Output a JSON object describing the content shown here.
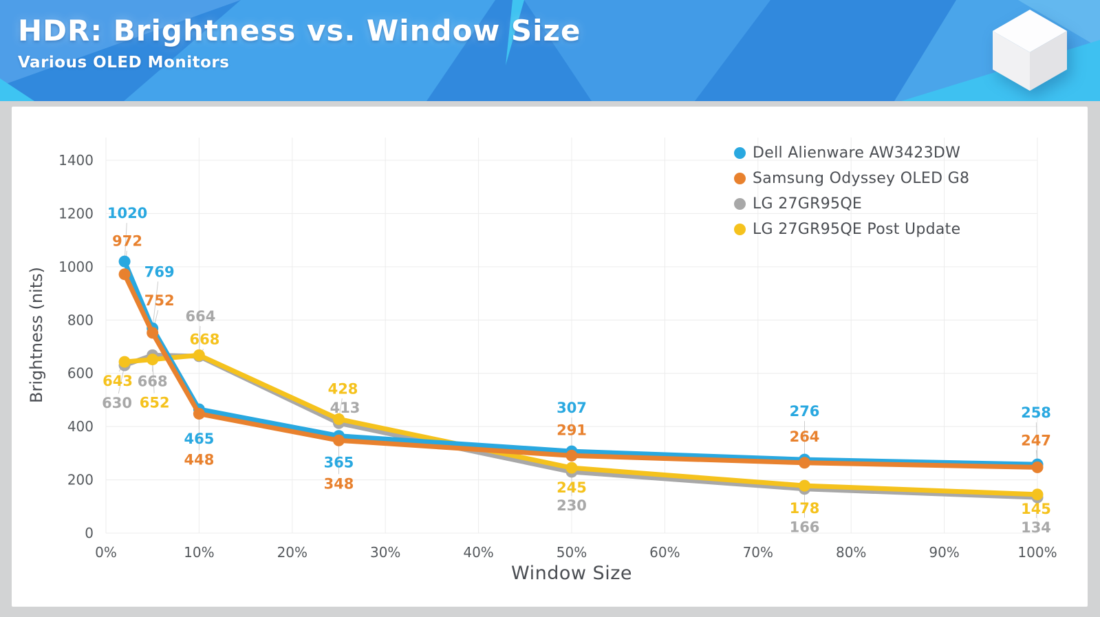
{
  "header": {
    "title": "HDR: Brightness vs. Window Size",
    "subtitle": "Various OLED Monitors",
    "logo_icon": "cube-icon",
    "background_colors": [
      "#3189DD",
      "#4E9EE8",
      "#44A3EB",
      "#429BE7",
      "#4AA5EA",
      "#63B8EF",
      "#3EC1F1"
    ]
  },
  "page": {
    "background_color": "#d2d3d4",
    "card_color": "#ffffff"
  },
  "chart_data": {
    "type": "line",
    "title": "HDR: Brightness vs. Window Size",
    "subtitle": "Various OLED Monitors",
    "xlabel": "Window Size",
    "ylabel": "Brightness (nits)",
    "x_unit": "%",
    "x": [
      2,
      5,
      10,
      25,
      50,
      75,
      100
    ],
    "x_ticks": [
      0,
      10,
      20,
      30,
      40,
      50,
      60,
      70,
      80,
      90,
      100
    ],
    "x_tick_labels": [
      "0%",
      "10%",
      "20%",
      "30%",
      "40%",
      "50%",
      "60%",
      "70%",
      "80%",
      "90%",
      "100%"
    ],
    "y_ticks": [
      0,
      200,
      400,
      600,
      800,
      1000,
      1200,
      1400
    ],
    "xlim": [
      0,
      100
    ],
    "ylim": [
      0,
      1500
    ],
    "grid": true,
    "data_labels": true,
    "legend_position": "top-right",
    "grid_color": "#ececec",
    "tick_color": "#55595d",
    "leader_line_color": "#cccccc",
    "series": [
      {
        "name": "Dell Alienware AW3423DW",
        "color": "#29A8E0",
        "values": [
          1020,
          769,
          465,
          365,
          307,
          276,
          258
        ]
      },
      {
        "name": "Samsung Odyssey OLED G8",
        "color": "#E8812E",
        "values": [
          972,
          752,
          448,
          348,
          291,
          264,
          247
        ]
      },
      {
        "name": "LG 27GR95QE",
        "color": "#A8A8A8",
        "values": [
          630,
          668,
          664,
          413,
          230,
          166,
          134
        ]
      },
      {
        "name": "LG 27GR95QE Post Update",
        "color": "#F5C21D",
        "values": [
          643,
          652,
          668,
          428,
          245,
          178,
          145
        ]
      }
    ]
  }
}
